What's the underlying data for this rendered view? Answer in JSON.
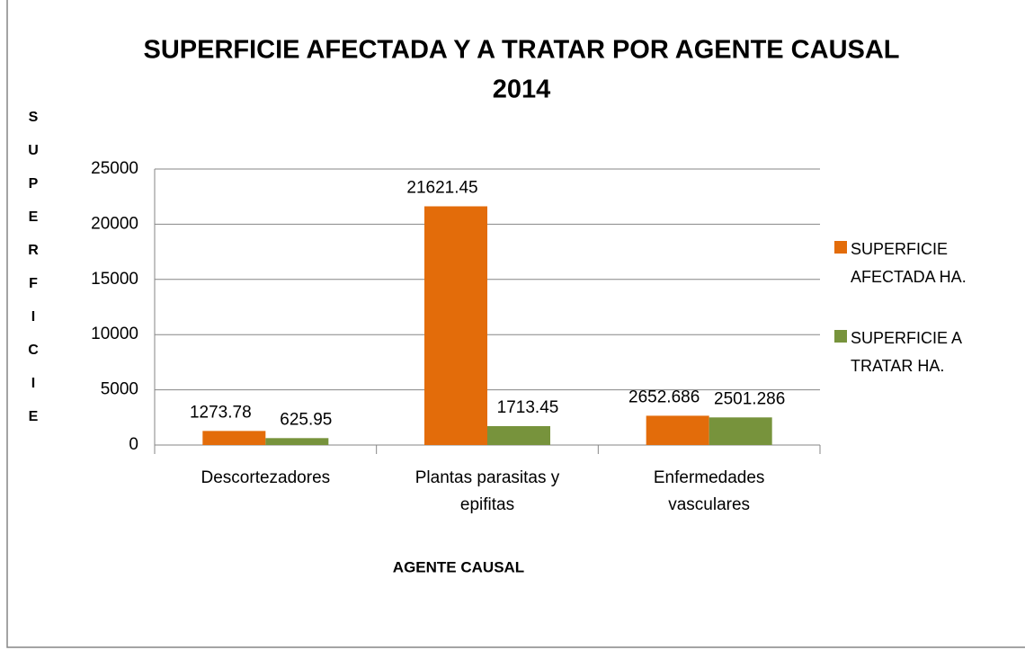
{
  "chart_data": {
    "type": "bar",
    "title": [
      "SUPERFICIE AFECTADA Y A TRATAR POR AGENTE CAUSAL",
      "2014"
    ],
    "y_label": "SUPERFICIE",
    "x_label": "AGENTE CAUSAL",
    "categories": [
      "Descortezadores",
      "Plantas parasitas y epifitas",
      "Enfermedades vasculares"
    ],
    "series": [
      {
        "name": "SUPERFICIE AFECTADA HA.",
        "color": "#e36c0a",
        "values": [
          1273.78,
          21621.45,
          2652.686
        ]
      },
      {
        "name": "SUPERFICIE A TRATAR HA.",
        "color": "#77933c",
        "values": [
          625.95,
          1713.45,
          2501.286
        ]
      }
    ],
    "ylim": [
      0,
      25000
    ],
    "yticks": [
      0,
      5000,
      10000,
      15000,
      20000,
      25000
    ],
    "grid": true,
    "legend": "right"
  }
}
